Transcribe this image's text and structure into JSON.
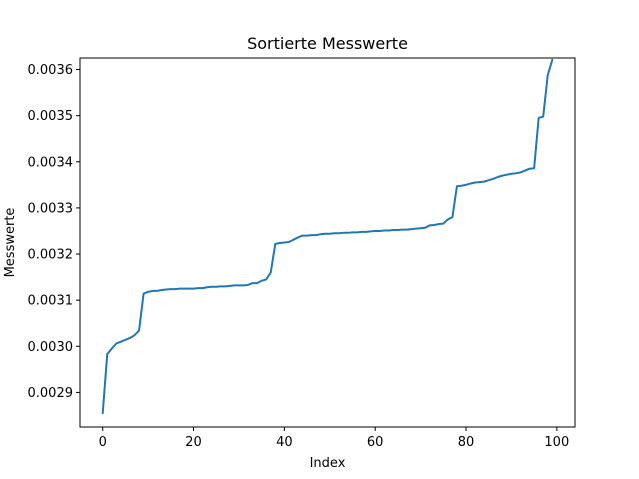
{
  "chart_data": {
    "type": "line",
    "title": "Sortierte Messwerte",
    "xlabel": "Index",
    "ylabel": "Messwerte",
    "xlim": [
      -5,
      104
    ],
    "ylim": [
      0.002825,
      0.003625
    ],
    "xticks": [
      0,
      20,
      40,
      60,
      80,
      100
    ],
    "xtick_labels": [
      "0",
      "20",
      "40",
      "60",
      "80",
      "100"
    ],
    "yticks": [
      0.0029,
      0.003,
      0.0031,
      0.0032,
      0.0033,
      0.0034,
      0.0035,
      0.0036
    ],
    "ytick_labels": [
      "0.0029",
      "0.0030",
      "0.0031",
      "0.0032",
      "0.0033",
      "0.0034",
      "0.0035",
      "0.0036"
    ],
    "grid": false,
    "series": [
      {
        "color": "#1f77b4",
        "x": [
          0,
          1,
          2,
          3,
          4,
          5,
          6,
          7,
          8,
          9,
          10,
          11,
          12,
          13,
          14,
          15,
          16,
          17,
          18,
          19,
          20,
          21,
          22,
          23,
          24,
          25,
          26,
          27,
          28,
          29,
          30,
          31,
          32,
          33,
          34,
          35,
          36,
          37,
          38,
          39,
          40,
          41,
          42,
          43,
          44,
          45,
          46,
          47,
          48,
          49,
          50,
          51,
          52,
          53,
          54,
          55,
          56,
          57,
          58,
          59,
          60,
          61,
          62,
          63,
          64,
          65,
          66,
          67,
          68,
          69,
          70,
          71,
          72,
          73,
          74,
          75,
          76,
          77,
          78,
          79,
          80,
          81,
          82,
          83,
          84,
          85,
          86,
          87,
          88,
          89,
          90,
          91,
          92,
          93,
          94,
          95,
          96,
          97,
          98,
          99
        ],
        "y": [
          0.002855,
          0.002983,
          0.002995,
          0.003006,
          0.00301,
          0.003014,
          0.003018,
          0.003024,
          0.003034,
          0.003114,
          0.003118,
          0.00312,
          0.00312,
          0.003122,
          0.003123,
          0.003124,
          0.003124,
          0.003125,
          0.003125,
          0.003125,
          0.003125,
          0.003126,
          0.003126,
          0.003128,
          0.003129,
          0.003129,
          0.00313,
          0.00313,
          0.003131,
          0.003132,
          0.003132,
          0.003132,
          0.003133,
          0.003137,
          0.003137,
          0.003142,
          0.003145,
          0.00316,
          0.003222,
          0.003224,
          0.003225,
          0.003226,
          0.003231,
          0.003236,
          0.00324,
          0.00324,
          0.003241,
          0.003241,
          0.003243,
          0.003244,
          0.003244,
          0.003245,
          0.003245,
          0.003246,
          0.003246,
          0.003247,
          0.003247,
          0.003248,
          0.003248,
          0.003249,
          0.00325,
          0.00325,
          0.003251,
          0.003251,
          0.003252,
          0.003252,
          0.003253,
          0.003253,
          0.003254,
          0.003255,
          0.003256,
          0.003257,
          0.003262,
          0.003263,
          0.003265,
          0.003266,
          0.003275,
          0.00328,
          0.003347,
          0.003348,
          0.00335,
          0.003353,
          0.003355,
          0.003356,
          0.003357,
          0.00336,
          0.003363,
          0.003367,
          0.00337,
          0.003372,
          0.003374,
          0.003375,
          0.003377,
          0.003381,
          0.003385,
          0.003386,
          0.003495,
          0.003498,
          0.003588,
          0.003621
        ]
      }
    ]
  }
}
